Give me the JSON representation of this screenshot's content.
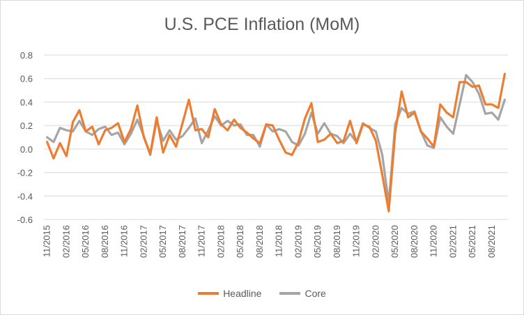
{
  "chart_data": {
    "type": "line",
    "title": "U.S. PCE Inflation (MoM)",
    "xlabel": "",
    "ylabel": "",
    "ylim": [
      -0.6,
      0.8
    ],
    "yticks": [
      "0.8",
      "0.6",
      "0.4",
      "0.2",
      "0.0",
      "-0.2",
      "-0.4",
      "-0.6"
    ],
    "ytick_values": [
      0.8,
      0.6,
      0.4,
      0.2,
      0.0,
      -0.2,
      -0.4,
      -0.6
    ],
    "grid": true,
    "legend_position": "bottom",
    "x": [
      "11/2015",
      "12/2015",
      "01/2016",
      "02/2016",
      "03/2016",
      "04/2016",
      "05/2016",
      "06/2016",
      "07/2016",
      "08/2016",
      "09/2016",
      "10/2016",
      "11/2016",
      "12/2016",
      "01/2017",
      "02/2017",
      "03/2017",
      "04/2017",
      "05/2017",
      "06/2017",
      "07/2017",
      "08/2017",
      "09/2017",
      "10/2017",
      "11/2017",
      "12/2017",
      "01/2018",
      "02/2018",
      "03/2018",
      "04/2018",
      "05/2018",
      "06/2018",
      "07/2018",
      "08/2018",
      "09/2018",
      "10/2018",
      "11/2018",
      "12/2018",
      "01/2019",
      "02/2019",
      "03/2019",
      "04/2019",
      "05/2019",
      "06/2019",
      "07/2019",
      "08/2019",
      "09/2019",
      "10/2019",
      "11/2019",
      "12/2019",
      "01/2020",
      "02/2020",
      "03/2020",
      "04/2020",
      "05/2020",
      "06/2020",
      "07/2020",
      "08/2020",
      "09/2020",
      "10/2020",
      "11/2020",
      "12/2020",
      "01/2021",
      "02/2021",
      "03/2021",
      "04/2021",
      "05/2021",
      "06/2021",
      "07/2021",
      "08/2021",
      "09/2021",
      "10/2021"
    ],
    "xtick_labels": [
      "11/2015",
      "02/2016",
      "05/2016",
      "08/2016",
      "11/2016",
      "02/2017",
      "05/2017",
      "08/2017",
      "11/2017",
      "02/2018",
      "05/2018",
      "08/2018",
      "11/2018",
      "02/2019",
      "05/2019",
      "08/2019",
      "11/2019",
      "02/2020",
      "05/2020",
      "08/2020",
      "11/2020",
      "02/2021",
      "05/2021",
      "08/2021"
    ],
    "series": [
      {
        "name": "Headline",
        "color": "#ed7d31",
        "values": [
          0.06,
          -0.08,
          0.05,
          -0.06,
          0.23,
          0.33,
          0.15,
          0.19,
          0.04,
          0.16,
          0.18,
          0.22,
          0.06,
          0.17,
          0.37,
          0.1,
          -0.04,
          0.27,
          -0.03,
          0.12,
          0.02,
          0.22,
          0.42,
          0.16,
          0.17,
          0.1,
          0.34,
          0.21,
          0.16,
          0.25,
          0.18,
          0.14,
          0.09,
          0.05,
          0.21,
          0.2,
          0.08,
          -0.03,
          -0.05,
          0.06,
          0.26,
          0.39,
          0.06,
          0.08,
          0.13,
          0.05,
          0.07,
          0.24,
          0.05,
          0.21,
          0.19,
          0.07,
          -0.22,
          -0.53,
          0.14,
          0.49,
          0.27,
          0.31,
          0.15,
          0.09,
          0.02,
          0.38,
          0.31,
          0.27,
          0.57,
          0.57,
          0.53,
          0.54,
          0.38,
          0.38,
          0.35,
          0.64
        ]
      },
      {
        "name": "Core",
        "color": "#a5a5a5",
        "values": [
          0.1,
          0.06,
          0.18,
          0.16,
          0.15,
          0.24,
          0.15,
          0.12,
          0.17,
          0.19,
          0.12,
          0.14,
          0.04,
          0.13,
          0.25,
          0.11,
          -0.05,
          0.24,
          0.07,
          0.16,
          0.08,
          0.11,
          0.18,
          0.26,
          0.05,
          0.16,
          0.28,
          0.2,
          0.24,
          0.2,
          0.21,
          0.12,
          0.12,
          0.02,
          0.21,
          0.15,
          0.17,
          0.15,
          0.06,
          0.03,
          0.13,
          0.31,
          0.13,
          0.22,
          0.13,
          0.11,
          0.05,
          0.13,
          0.06,
          0.22,
          0.18,
          0.15,
          -0.05,
          -0.46,
          0.21,
          0.35,
          0.3,
          0.32,
          0.15,
          0.03,
          0.01,
          0.27,
          0.19,
          0.13,
          0.38,
          0.63,
          0.57,
          0.47,
          0.3,
          0.31,
          0.25,
          0.42
        ]
      }
    ]
  }
}
